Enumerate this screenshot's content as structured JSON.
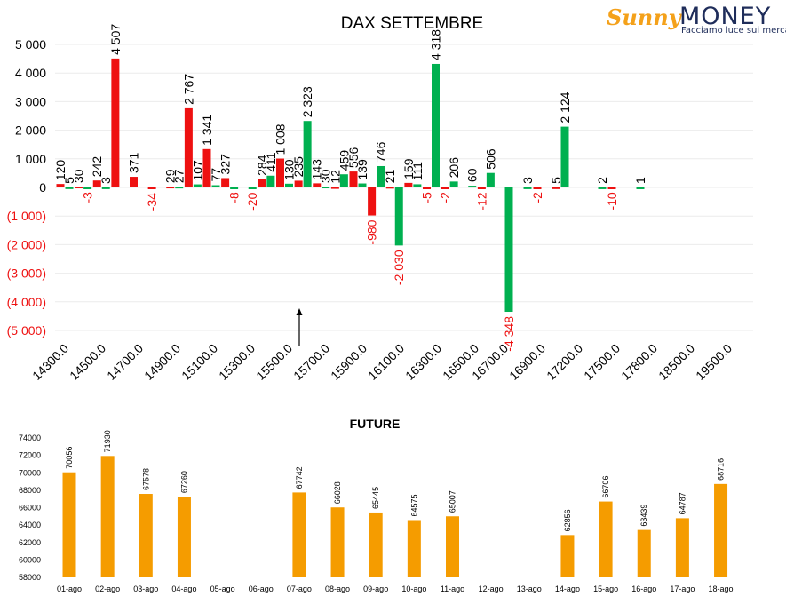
{
  "logo": {
    "brand_a": "Sunny",
    "brand_b": "MONEY",
    "tagline": "Facciamo luce sui mercati"
  },
  "colors": {
    "calls": "#ee1111",
    "puts": "#00b050",
    "future": "#f59c00",
    "negative_label": "#ee1111"
  },
  "chart_data": [
    {
      "type": "bar",
      "title": "DAX SETTEMBRE",
      "ylim": [
        -5000,
        5000
      ],
      "yticks": [
        5000,
        4000,
        3000,
        2000,
        1000,
        0,
        -1000,
        -2000,
        -3000,
        -4000,
        -5000
      ],
      "ytick_labels": [
        "5 000",
        "4 000",
        "3 000",
        "2 000",
        "1 000",
        "0",
        "(1 000)",
        "(2 000)",
        "(3 000)",
        "(4 000)",
        "(5 000)"
      ],
      "xtick_labels": [
        "14300.0",
        "14500.0",
        "14700.0",
        "14900.0",
        "15100.0",
        "15300.0",
        "15500.0",
        "15700.0",
        "15900.0",
        "16100.0",
        "16300.0",
        "16500.0",
        "16700.0",
        "16900.0",
        "17200.0",
        "17500.0",
        "17800.0",
        "18500.0",
        "19500.0"
      ],
      "grid": true,
      "legend": "none",
      "annotation": "arrow at 15600.0",
      "bars": [
        {
          "x": 14300.0,
          "value": 120,
          "label": "120",
          "series": "red"
        },
        {
          "x": 14300.0,
          "value": 5,
          "label": "5",
          "series": "green"
        },
        {
          "x": 14400.0,
          "value": 30,
          "label": "30",
          "series": "red"
        },
        {
          "x": 14400.0,
          "value": -3,
          "label": "-3",
          "series": "green"
        },
        {
          "x": 14500.0,
          "value": 242,
          "label": "242",
          "series": "red"
        },
        {
          "x": 14500.0,
          "value": 3,
          "label": "3",
          "series": "green"
        },
        {
          "x": 14600.0,
          "value": 4507,
          "label": "4 507",
          "series": "red"
        },
        {
          "x": 14700.0,
          "value": 371,
          "label": "371",
          "series": "red"
        },
        {
          "x": 14800.0,
          "value": -34,
          "label": "-34",
          "series": "red"
        },
        {
          "x": 14900.0,
          "value": 27,
          "label": "27",
          "series": "green"
        },
        {
          "x": 14900.0,
          "value": 29,
          "label": "29",
          "series": "red"
        },
        {
          "x": 15000.0,
          "value": 107,
          "label": "107",
          "series": "green"
        },
        {
          "x": 15000.0,
          "value": 2767,
          "label": "2 767",
          "series": "red"
        },
        {
          "x": 15100.0,
          "value": 77,
          "label": "77",
          "series": "green"
        },
        {
          "x": 15100.0,
          "value": 1341,
          "label": "1 341",
          "series": "red"
        },
        {
          "x": 15200.0,
          "value": -8,
          "label": "-8",
          "series": "green"
        },
        {
          "x": 15200.0,
          "value": 327,
          "label": "327",
          "series": "red"
        },
        {
          "x": 15300.0,
          "value": -20,
          "label": "-20",
          "series": "green"
        },
        {
          "x": 15400.0,
          "value": 411,
          "label": "411",
          "series": "green"
        },
        {
          "x": 15400.0,
          "value": 284,
          "label": "284",
          "series": "red"
        },
        {
          "x": 15500.0,
          "value": 130,
          "label": "130",
          "series": "green"
        },
        {
          "x": 15500.0,
          "value": 1008,
          "label": "1 008",
          "series": "red"
        },
        {
          "x": 15600.0,
          "value": 2323,
          "label": "2 323",
          "series": "green"
        },
        {
          "x": 15600.0,
          "value": 235,
          "label": "235",
          "series": "red"
        },
        {
          "x": 15700.0,
          "value": 30,
          "label": "30",
          "series": "green"
        },
        {
          "x": 15700.0,
          "value": 143,
          "label": "143",
          "series": "red"
        },
        {
          "x": 15800.0,
          "value": 459,
          "label": "459",
          "series": "green"
        },
        {
          "x": 15800.0,
          "value": 12,
          "label": "12",
          "series": "red"
        },
        {
          "x": 15900.0,
          "value": 139,
          "label": "139",
          "series": "green"
        },
        {
          "x": 15900.0,
          "value": 556,
          "label": "556",
          "series": "red"
        },
        {
          "x": 16000.0,
          "value": 746,
          "label": "746",
          "series": "green"
        },
        {
          "x": 16000.0,
          "value": -980,
          "label": "-980",
          "series": "red"
        },
        {
          "x": 16100.0,
          "value": -2030,
          "label": "-2 030",
          "series": "green"
        },
        {
          "x": 16100.0,
          "value": 21,
          "label": "21",
          "series": "red"
        },
        {
          "x": 16200.0,
          "value": 111,
          "label": "111",
          "series": "green"
        },
        {
          "x": 16200.0,
          "value": 159,
          "label": "159",
          "series": "red"
        },
        {
          "x": 16300.0,
          "value": 4318,
          "label": "4 318",
          "series": "green"
        },
        {
          "x": 16300.0,
          "value": -5,
          "label": "-5",
          "series": "red"
        },
        {
          "x": 16400.0,
          "value": 206,
          "label": "206",
          "series": "green"
        },
        {
          "x": 16400.0,
          "value": -2,
          "label": "-2",
          "series": "red"
        },
        {
          "x": 16500.0,
          "value": 60,
          "label": "60",
          "series": "green"
        },
        {
          "x": 16600.0,
          "value": 506,
          "label": "506",
          "series": "green"
        },
        {
          "x": 16600.0,
          "value": -12,
          "label": "-12",
          "series": "red"
        },
        {
          "x": 16700.0,
          "value": -4348,
          "label": "-4 348",
          "series": "green"
        },
        {
          "x": 16800.0,
          "value": 3,
          "label": "3",
          "series": "green"
        },
        {
          "x": 16900.0,
          "value": -2,
          "label": "-2",
          "series": "red"
        },
        {
          "x": 17000.0,
          "value": 2124,
          "label": "2 124",
          "series": "green"
        },
        {
          "x": 17000.0,
          "value": 5,
          "label": "5",
          "series": "red"
        },
        {
          "x": 17200.0,
          "value": 2,
          "label": "2",
          "series": "green"
        },
        {
          "x": 17500.0,
          "value": -10,
          "label": "-10",
          "series": "red"
        },
        {
          "x": 17800.0,
          "value": 1,
          "label": "1",
          "series": "green"
        }
      ]
    },
    {
      "type": "bar",
      "title": "FUTURE",
      "ylim": [
        58000,
        74000
      ],
      "yticks": [
        58000,
        60000,
        62000,
        64000,
        66000,
        68000,
        70000,
        72000,
        74000
      ],
      "categories": [
        "01-ago",
        "02-ago",
        "03-ago",
        "04-ago",
        "05-ago",
        "06-ago",
        "07-ago",
        "08-ago",
        "09-ago",
        "10-ago",
        "11-ago",
        "12-ago",
        "13-ago",
        "14-ago",
        "15-ago",
        "16-ago",
        "17-ago",
        "18-ago"
      ],
      "values": [
        70056,
        71930,
        67578,
        67260,
        null,
        null,
        67742,
        66028,
        65445,
        64575,
        65007,
        null,
        null,
        62856,
        66706,
        63439,
        64787,
        68716
      ],
      "grid": false,
      "legend": "none"
    }
  ]
}
